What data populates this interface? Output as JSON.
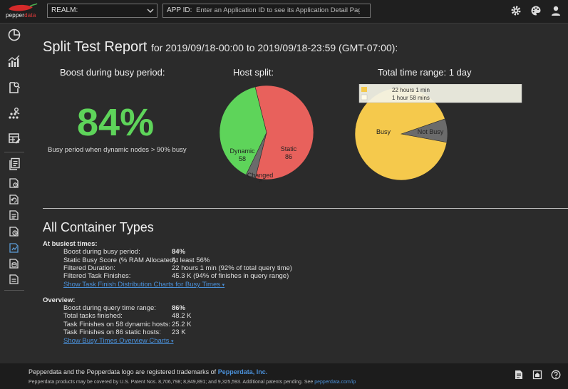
{
  "topbar": {
    "logo_text_a": "pepper",
    "logo_text_b": "data",
    "realm_label": "REALM:",
    "appid_label": "APP ID:",
    "appid_placeholder": "Enter an Application ID to see its Application Detail Page",
    "icons": [
      "gear-icon",
      "palette-icon",
      "user-icon"
    ]
  },
  "sidebar": {
    "icons": [
      "pie-chart-icon",
      "bar-chart-icon",
      "document-search-icon",
      "network-icon",
      "table-edit-icon",
      "pages-icon",
      "page-gear-icon",
      "page-refresh-icon",
      "page-list-icon",
      "page-clock-icon",
      "page-active-icon",
      "page-db-icon",
      "page-report-icon"
    ]
  },
  "report": {
    "title": "Split Test Report",
    "subtitle": "for 2019/09/18-00:00 to 2019/09/18-23:59 (GMT-07:00):"
  },
  "boost_panel": {
    "title": "Boost during busy period:",
    "value": "84%",
    "caption": "Busy period when dynamic nodes > 90% busy"
  },
  "chart_data": [
    {
      "type": "pie",
      "title": "Host split:",
      "labels": [
        "Dynamic",
        "Static",
        "Changed"
      ],
      "values": [
        58,
        86,
        5
      ],
      "colors": [
        "#5ed45a",
        "#e8615c",
        "#6b6b6b"
      ]
    },
    {
      "type": "pie",
      "title": "Total time range: 1 day",
      "labels": [
        "Busy",
        "Not Busy"
      ],
      "values": [
        1321,
        118
      ],
      "colors": [
        "#f5c94c",
        "#6b6b6b"
      ],
      "legend_placement": "top",
      "legend": [
        "22 hours 1 min",
        "1 hour 58 mins"
      ]
    }
  ],
  "host_split_labels": {
    "dynamic": "Dynamic",
    "dynamic_value": "58",
    "static": "Static",
    "static_value": "86",
    "changed": "Changed",
    "changed_value": "5"
  },
  "time_range_labels": {
    "busy": "Busy",
    "not_busy": "Not Busy",
    "legend_busy": "22 hours 1 min",
    "legend_not_busy": "1 hour 58 mins"
  },
  "container": {
    "title": "All Container Types",
    "busiest_head": "At busiest times:",
    "busiest_rows": [
      {
        "label": "Boost during busy period:",
        "value": "84%",
        "bold": true
      },
      {
        "label": "Static Busy Score (% RAM Allocated):",
        "value": "At least 56%",
        "bold": false
      },
      {
        "label": "Filtered Duration:",
        "value": "22 hours 1 min (92% of total query time)",
        "bold": false
      },
      {
        "label": "Filtered Task Finishes:",
        "value": "45.3 K (94% of finishes in query range)",
        "bold": false
      }
    ],
    "busiest_link": "Show Task Finish Distribution Charts for Busy Times",
    "overview_head": "Overview:",
    "overview_rows": [
      {
        "label": "Boost during query time range:",
        "value": "86%",
        "bold": true
      },
      {
        "label": "Total tasks finished:",
        "value": "48.2 K",
        "bold": false
      },
      {
        "label": "Task Finishes on 58 dynamic hosts:",
        "value": "25.2 K",
        "bold": false
      },
      {
        "label": "Task Finishes on 86 static hosts:",
        "value": "23 K",
        "bold": false
      }
    ],
    "overview_link": "Show Busy Times Overview Charts"
  },
  "footer": {
    "line1_a": "Pepperdata and the Pepperdata logo are registered trademarks of",
    "line1_brand": "Pepperdata, Inc.",
    "line2_a": "Pepperdata products may be covered by U.S. Patent Nos. 8,706,798; 8,849,891; and 9,325,593. Additional patents pending. See",
    "line2_link": "pepperdata.com/ip",
    "icons": [
      "document-icon",
      "home-icon",
      "help-icon"
    ]
  }
}
